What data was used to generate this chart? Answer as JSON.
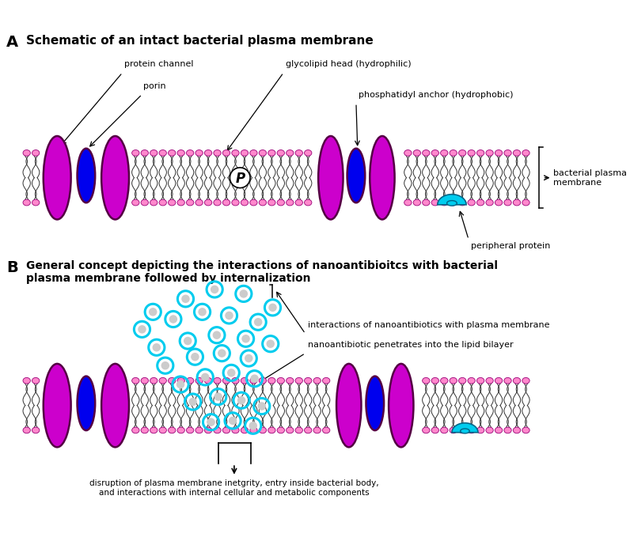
{
  "fig_width": 7.96,
  "fig_height": 7.08,
  "dpi": 100,
  "bg_color": "#ffffff",
  "magenta": "#CC00CC",
  "magenta_dark": "#660044",
  "blue": "#0000EE",
  "pink": "#FF88CC",
  "cyan": "#00CCEE",
  "gray_nano": "#CCCCCC",
  "panel_A_title": "Schematic of an intact bacterial plasma membrane",
  "panel_B_title": "General concept depicting the interactions of nanoantibioitcs with bacterial\nplasma membrane followed by internalization",
  "label_A": "A",
  "label_B": "B",
  "label_protein_channel": "protein channel",
  "label_porin": "porin",
  "label_glycolipid": "glycolipid head (hydrophilic)",
  "label_phosphatidyl": "phosphatidyl anchor (hydrophobic)",
  "label_bacterial_membrane": "bacterial plasma\nmembrane",
  "label_peripheral": "peripheral protein",
  "label_nano_interact": "interactions of nanoantibiotics with plasma membrane",
  "label_nano_penetrate": "nanoantibiotic penetrates into the lipid bilayer",
  "label_disruption": "disruption of plasma membrane inetgrity, entry inside bacterial body,\nand interactions with internal cellular and metabolic components"
}
